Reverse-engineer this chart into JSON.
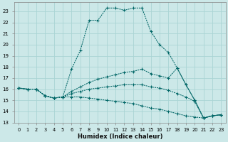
{
  "xlabel": "Humidex (Indice chaleur)",
  "bg_color": "#cce8e8",
  "grid_color": "#aad4d4",
  "line_color": "#006666",
  "xlim": [
    -0.5,
    23.5
  ],
  "ylim": [
    13,
    23.8
  ],
  "xtick_vals": [
    0,
    1,
    2,
    3,
    4,
    5,
    6,
    7,
    8,
    9,
    10,
    11,
    12,
    13,
    14,
    15,
    16,
    17,
    18,
    19,
    20,
    21,
    22,
    23
  ],
  "ytick_vals": [
    13,
    14,
    15,
    16,
    17,
    18,
    19,
    20,
    21,
    22,
    23
  ],
  "curve1_x": [
    0,
    1,
    2,
    3,
    4,
    5,
    6,
    7,
    8,
    9,
    10,
    11,
    12,
    13,
    14,
    15,
    16,
    17,
    18,
    19,
    20,
    21,
    22,
    23
  ],
  "curve1_y": [
    16.1,
    16.0,
    16.0,
    15.4,
    15.2,
    15.3,
    17.8,
    19.5,
    22.2,
    22.2,
    23.3,
    23.3,
    23.1,
    23.3,
    23.3,
    21.2,
    20.0,
    19.3,
    17.9,
    16.4,
    15.0,
    13.4,
    13.6,
    13.7
  ],
  "curve2_x": [
    0,
    1,
    2,
    3,
    4,
    5,
    6,
    7,
    8,
    9,
    10,
    11,
    12,
    13,
    14,
    15,
    16,
    17,
    18,
    19,
    20,
    21,
    22,
    23
  ],
  "curve2_y": [
    16.1,
    16.0,
    16.0,
    15.4,
    15.2,
    15.3,
    15.8,
    16.2,
    16.6,
    16.9,
    17.1,
    17.3,
    17.5,
    17.6,
    17.8,
    17.4,
    17.2,
    17.0,
    17.9,
    16.4,
    15.0,
    13.4,
    13.6,
    13.7
  ],
  "curve3_x": [
    0,
    1,
    2,
    3,
    4,
    5,
    6,
    7,
    8,
    9,
    10,
    11,
    12,
    13,
    14,
    15,
    16,
    17,
    18,
    19,
    20,
    21,
    22,
    23
  ],
  "curve3_y": [
    16.1,
    16.0,
    16.0,
    15.4,
    15.2,
    15.3,
    15.6,
    15.8,
    16.0,
    16.1,
    16.2,
    16.3,
    16.4,
    16.4,
    16.4,
    16.2,
    16.1,
    15.9,
    15.6,
    15.3,
    14.9,
    13.4,
    13.6,
    13.7
  ],
  "curve4_x": [
    0,
    1,
    2,
    3,
    4,
    5,
    6,
    7,
    8,
    9,
    10,
    11,
    12,
    13,
    14,
    15,
    16,
    17,
    18,
    19,
    20,
    21,
    22,
    23
  ],
  "curve4_y": [
    16.1,
    16.0,
    16.0,
    15.4,
    15.2,
    15.3,
    15.3,
    15.3,
    15.2,
    15.1,
    15.0,
    14.9,
    14.8,
    14.7,
    14.5,
    14.3,
    14.2,
    14.0,
    13.8,
    13.6,
    13.5,
    13.4,
    13.6,
    13.7
  ]
}
